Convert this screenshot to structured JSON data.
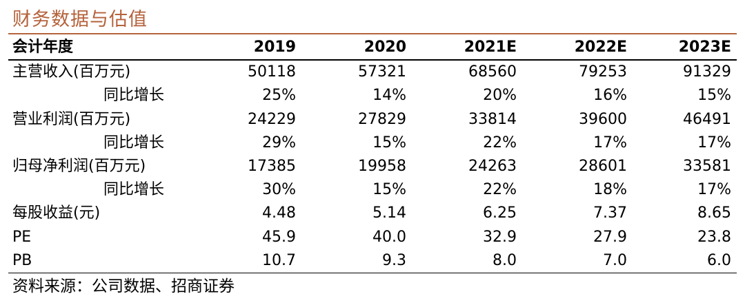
{
  "title": "财务数据与估值",
  "header": {
    "label": "会计年度",
    "years": [
      "2019",
      "2020",
      "2021E",
      "2022E",
      "2023E"
    ]
  },
  "rows": [
    {
      "label": "主营收入(百万元)",
      "sub": false,
      "values": [
        "50118",
        "57321",
        "68560",
        "79253",
        "91329"
      ]
    },
    {
      "label": "同比增长",
      "sub": true,
      "values": [
        "25%",
        "14%",
        "20%",
        "16%",
        "15%"
      ]
    },
    {
      "label": "营业利润(百万元)",
      "sub": false,
      "values": [
        "24229",
        "27829",
        "33814",
        "39600",
        "46491"
      ]
    },
    {
      "label": "同比增长",
      "sub": true,
      "values": [
        "29%",
        "15%",
        "22%",
        "17%",
        "17%"
      ]
    },
    {
      "label": "归母净利润(百万元)",
      "sub": false,
      "values": [
        "17385",
        "19958",
        "24263",
        "28601",
        "33581"
      ]
    },
    {
      "label": "同比增长",
      "sub": true,
      "values": [
        "30%",
        "15%",
        "22%",
        "18%",
        "17%"
      ]
    },
    {
      "label": "每股收益(元)",
      "sub": false,
      "values": [
        "4.48",
        "5.14",
        "6.25",
        "7.37",
        "8.65"
      ]
    },
    {
      "label": "PE",
      "sub": false,
      "values": [
        "45.9",
        "40.0",
        "32.9",
        "27.9",
        "23.8"
      ]
    },
    {
      "label": "PB",
      "sub": false,
      "values": [
        "10.7",
        "9.3",
        "8.0",
        "7.0",
        "6.0"
      ]
    }
  ],
  "source": "资料来源：公司数据、招商证券",
  "colors": {
    "accent": "#b5623b",
    "text": "#000000"
  }
}
